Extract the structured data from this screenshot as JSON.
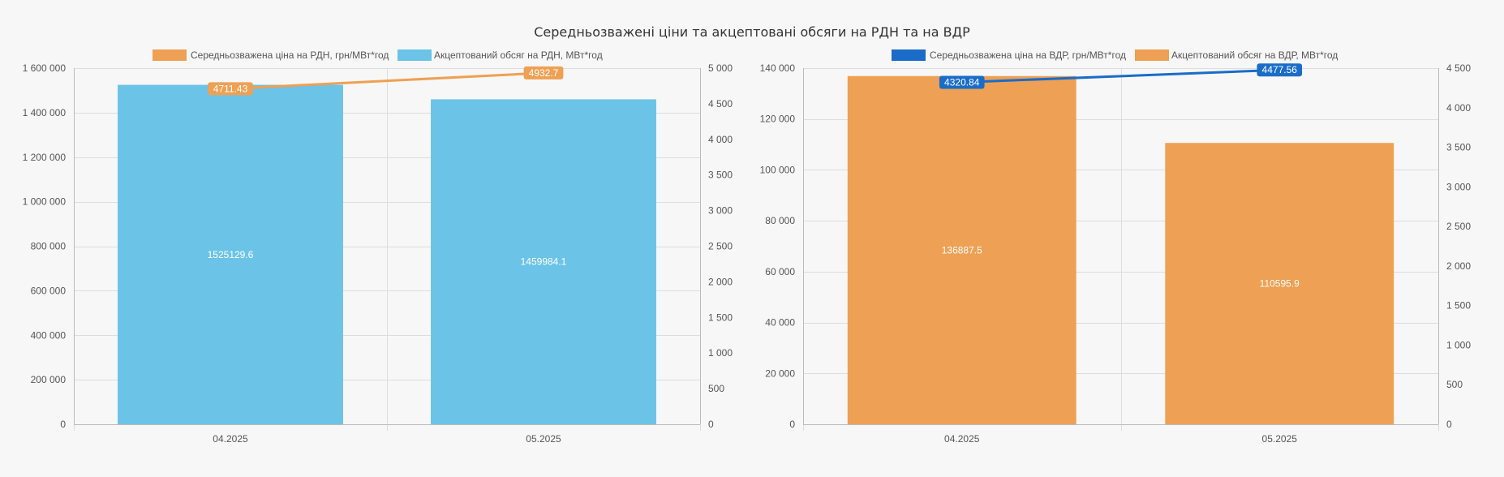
{
  "page": {
    "title": "Середньозважені ціни та акцептовані обсяги на РДН та на ВДР"
  },
  "colors": {
    "background": "#f7f7f7",
    "grid": "#dddddd",
    "axis": "#bbbbbb",
    "rdn_bar": "#6bc3e8",
    "rdn_line": "#eea054",
    "vdr_bar": "#eea054",
    "vdr_line": "#1a6cc8"
  },
  "chart_data": [
    {
      "type": "bar",
      "title": "",
      "categories": [
        "04.2025",
        "05.2025"
      ],
      "xlabel": "",
      "ylabel": "",
      "y_left": {
        "ylim": [
          0,
          1600000
        ],
        "ticks": [
          0,
          200000,
          400000,
          600000,
          800000,
          1000000,
          1200000,
          1400000,
          1600000
        ],
        "tick_labels": [
          "0",
          "200 000",
          "400 000",
          "600 000",
          "800 000",
          "1 000 000",
          "1 200 000",
          "1 400 000",
          "1 600 000"
        ]
      },
      "y_right": {
        "ylim": [
          0,
          5000
        ],
        "ticks": [
          0,
          500,
          1000,
          1500,
          2000,
          2500,
          3000,
          3500,
          4000,
          4500,
          5000
        ],
        "tick_labels": [
          "0",
          "500",
          "1 000",
          "1 500",
          "2 000",
          "2 500",
          "3 000",
          "3 500",
          "4 000",
          "4 500",
          "5 000"
        ]
      },
      "grid": true,
      "legend_position": "top",
      "series": [
        {
          "name": "Середньозважена ціна на РДН, грн/МВт*год",
          "kind": "line",
          "axis": "right",
          "color": "#eea054",
          "values": [
            4711.43,
            4932.7
          ],
          "labels": [
            "4711.43",
            "4932.7"
          ]
        },
        {
          "name": "Акцептований обсяг на РДН, МВт*год",
          "kind": "bar",
          "axis": "left",
          "color": "#6bc3e8",
          "values": [
            1525129.6,
            1459984.1
          ],
          "labels": [
            "1525129.6",
            "1459984.1"
          ]
        }
      ]
    },
    {
      "type": "bar",
      "title": "",
      "categories": [
        "04.2025",
        "05.2025"
      ],
      "xlabel": "",
      "ylabel": "",
      "y_left": {
        "ylim": [
          0,
          140000
        ],
        "ticks": [
          0,
          20000,
          40000,
          60000,
          80000,
          100000,
          120000,
          140000
        ],
        "tick_labels": [
          "0",
          "20 000",
          "40 000",
          "60 000",
          "80 000",
          "100 000",
          "120 000",
          "140 000"
        ]
      },
      "y_right": {
        "ylim": [
          0,
          4500
        ],
        "ticks": [
          0,
          500,
          1000,
          1500,
          2000,
          2500,
          3000,
          3500,
          4000,
          4500
        ],
        "tick_labels": [
          "0",
          "500",
          "1 000",
          "1 500",
          "2 000",
          "2 500",
          "3 000",
          "3 500",
          "4 000",
          "4 500"
        ]
      },
      "grid": true,
      "legend_position": "top",
      "series": [
        {
          "name": "Середньозважена ціна на ВДР, грн/МВт*год",
          "kind": "line",
          "axis": "right",
          "color": "#1a6cc8",
          "values": [
            4320.84,
            4477.56
          ],
          "labels": [
            "4320.84",
            "4477.56"
          ]
        },
        {
          "name": "Акцептований обсяг на ВДР, МВт*год",
          "kind": "bar",
          "axis": "left",
          "color": "#eea054",
          "values": [
            136887.5,
            110595.9
          ],
          "labels": [
            "136887.5",
            "110595.9"
          ]
        }
      ]
    }
  ]
}
